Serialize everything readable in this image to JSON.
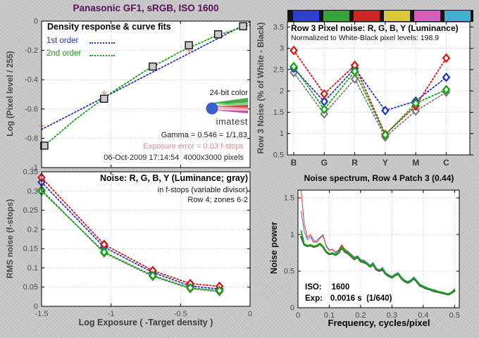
{
  "figure": {
    "title": "Panasonic GF1, sRGB, ISO 1600",
    "title_color": "#5a0d5a",
    "background_color": "#c6c6c6"
  },
  "chart_data": [
    {
      "id": "density",
      "type": "scatter",
      "title": "Density response & curve fits",
      "legend": {
        "position": "top-left",
        "entries": [
          {
            "label": "1st order",
            "color": "#2233cc"
          },
          {
            "label": "2nd order",
            "color": "#11a211"
          }
        ]
      },
      "ylabel": "Log (Pixel level / 255)",
      "xlim": [
        -1.5,
        0
      ],
      "ylim": [
        -1,
        0
      ],
      "xticks": [
        -1,
        -0.5
      ],
      "yticks": [
        0,
        -0.2,
        -0.4,
        -0.6,
        -0.8,
        -1
      ],
      "ytick_labels": [
        "0",
        "-0.2",
        "-0.4",
        "-0.6",
        "-0.8",
        "-1"
      ],
      "grid": true,
      "series": [
        {
          "name": "1st-order-fit",
          "color": "#2233cc",
          "style": "dotted",
          "x": [
            -1.5,
            0
          ],
          "y": [
            -0.74,
            -0.005
          ]
        },
        {
          "name": "2nd-order-fit",
          "color": "#11a211",
          "style": "dotted",
          "x": [
            -1.5,
            -1.25,
            -1.0,
            -0.75,
            -0.5,
            -0.25,
            0
          ],
          "y": [
            -0.866,
            -0.666,
            -0.49,
            -0.337,
            -0.208,
            -0.102,
            -0.025
          ]
        },
        {
          "name": "exposure-error-marks",
          "color": "#e09a9a",
          "marker": "plus",
          "x": [
            -1.5,
            -1.05,
            -0.44
          ],
          "y": [
            -0.715,
            -0.49,
            -0.2
          ]
        },
        {
          "name": "measured-patches",
          "color": "#111111",
          "fill": "#c9c9c9",
          "marker": "square",
          "x": [
            -1.48,
            -1.05,
            -0.7,
            -0.44,
            -0.23,
            -0.05
          ],
          "y": [
            -0.85,
            -0.53,
            -0.31,
            -0.165,
            -0.09,
            -0.035
          ]
        }
      ],
      "annotations": {
        "color_note": "24-bit color",
        "logo_text": "imatest",
        "gamma": "Gamma = 0.546 = 1/1.83",
        "exposure_error": "Exposure error = 0.03 f-stops",
        "exposure_error_color": "#e08a8a",
        "datestamp": "06-Oct-2009 17:14:54  4000x3000 pixels"
      }
    },
    {
      "id": "row3-noise",
      "type": "line",
      "title": "Row 3 Pixel noise: R, G, B, Y (Luminance)",
      "subtitle": "Normalized to White-Black pixel levels: 198.9",
      "ylabel": "Row 3 Noise (% of White - Black)",
      "categories": [
        "B",
        "G",
        "R",
        "Y",
        "M",
        "C"
      ],
      "ylim": [
        0.5,
        3.62
      ],
      "yticks": [
        0.5,
        1,
        1.5,
        2,
        2.5,
        3,
        3.5
      ],
      "ytick_labels": [
        "0.5",
        "1",
        "1.5",
        "2",
        "2.5",
        "3",
        "3.5"
      ],
      "grid": true,
      "color_strip": [
        "#2f3fd0",
        "#3aa23a",
        "#cc2525",
        "#d9ca35",
        "#da5cba",
        "#42aed0"
      ],
      "series": [
        {
          "name": "R",
          "color": "#dd1111",
          "marker": "diamond",
          "style": "dotted",
          "values": [
            2.95,
            1.93,
            2.6,
            0.98,
            1.65,
            2.77
          ]
        },
        {
          "name": "G",
          "color": "#0da80d",
          "marker": "diamond",
          "style": "dotted",
          "values": [
            2.57,
            1.57,
            2.46,
            0.97,
            1.71,
            2.03
          ]
        },
        {
          "name": "B",
          "color": "#2233cc",
          "marker": "diamond",
          "style": "dotted",
          "values": [
            2.53,
            1.75,
            2.53,
            1.54,
            1.76,
            2.32
          ]
        },
        {
          "name": "Y",
          "color": "#7d7d7d",
          "marker": "diamond",
          "style": "dotted",
          "values": [
            2.43,
            1.46,
            2.28,
            0.92,
            1.53,
            1.97
          ]
        }
      ]
    },
    {
      "id": "rms-noise",
      "type": "line",
      "title": "Noise: R, G, B, Y (Luminance; gray)",
      "subtitle": "in f-stops (variable divisor)",
      "subtitle2": "Row 4; zones 6-2",
      "ylabel": "RMS noise (f-stops)",
      "xlabel": "Log Exposure ( -Target density )",
      "xlim": [
        -1.5,
        0
      ],
      "ylim": [
        0,
        0.35
      ],
      "xticks": [
        -1.5,
        -1,
        -0.5,
        0
      ],
      "xtick_labels": [
        "-1.5",
        "-1",
        "-0.5",
        "0"
      ],
      "yticks": [
        0,
        0.05,
        0.1,
        0.15,
        0.2,
        0.25,
        0.3,
        0.35
      ],
      "ytick_labels": [
        "0",
        "0.05",
        "0.1",
        "0.15",
        "0.2",
        "0.25",
        "0.3",
        "0.35"
      ],
      "grid": true,
      "x": [
        -1.5,
        -1.05,
        -0.7,
        -0.43,
        -0.22
      ],
      "series": [
        {
          "name": "R",
          "color": "#dd1111",
          "marker": "diamond",
          "style": "dotted",
          "values": [
            0.335,
            0.161,
            0.093,
            0.059,
            0.052
          ]
        },
        {
          "name": "G",
          "color": "#0da80d",
          "marker": "diamond",
          "style": "dotted",
          "values": [
            0.3,
            0.141,
            0.08,
            0.048,
            0.041
          ]
        },
        {
          "name": "B",
          "color": "#2233cc",
          "marker": "diamond",
          "style": "dotted",
          "values": [
            0.323,
            0.154,
            0.088,
            0.053,
            0.045
          ]
        },
        {
          "name": "Y",
          "color": "#7d7d7d",
          "marker": "diamond",
          "style": "dotted",
          "values": [
            0.303,
            0.139,
            0.078,
            0.046,
            0.038
          ]
        }
      ]
    },
    {
      "id": "noise-spectrum",
      "type": "line",
      "title": "Noise spectrum, Row 4 Patch 3 (0.44)",
      "ylabel": "Noise power",
      "xlabel": "Frequency, cycles/pixel",
      "xlim": [
        0,
        0.515
      ],
      "ylim": [
        0,
        1.606
      ],
      "xticks": [
        0,
        0.1,
        0.2,
        0.3,
        0.4,
        0.5
      ],
      "xtick_labels": [
        "0",
        "0.1",
        "0.2",
        "0.3",
        "0.4",
        "0.5"
      ],
      "yticks": [
        0,
        0.5,
        1,
        1.5
      ],
      "ytick_labels": [
        "0",
        "0.5",
        "1",
        "1.5"
      ],
      "grid": true,
      "annotations": {
        "iso_label": "ISO:",
        "iso_value": "1600",
        "exp_label": "Exp:",
        "exp_value": "0.0016 s  (1/640)"
      },
      "x": [
        0.01,
        0.02,
        0.03,
        0.04,
        0.05,
        0.06,
        0.07,
        0.08,
        0.09,
        0.1,
        0.11,
        0.12,
        0.13,
        0.14,
        0.15,
        0.16,
        0.17,
        0.18,
        0.19,
        0.2,
        0.21,
        0.22,
        0.23,
        0.24,
        0.25,
        0.26,
        0.27,
        0.28,
        0.29,
        0.3,
        0.31,
        0.32,
        0.33,
        0.34,
        0.35,
        0.36,
        0.37,
        0.38,
        0.39,
        0.4,
        0.41,
        0.42,
        0.43,
        0.44,
        0.45,
        0.46,
        0.47,
        0.48,
        0.49,
        0.5
      ],
      "series": [
        {
          "name": "R",
          "color": "#e03030",
          "width": 1,
          "values": [
            1.6,
            1.14,
            0.96,
            1.0,
            0.92,
            0.89,
            0.95,
            0.98,
            0.85,
            0.79,
            0.79,
            0.76,
            0.79,
            0.86,
            0.79,
            0.76,
            0.72,
            0.68,
            0.7,
            0.65,
            0.64,
            0.61,
            0.57,
            0.61,
            0.53,
            0.51,
            0.54,
            0.47,
            0.44,
            0.42,
            0.45,
            0.47,
            0.41,
            0.37,
            0.35,
            0.37,
            0.41,
            0.36,
            0.31,
            0.29,
            0.27,
            0.26,
            0.24,
            0.23,
            0.22,
            0.21,
            0.2,
            0.19,
            0.21,
            0.26
          ]
        },
        {
          "name": "G",
          "color": "#00b400",
          "width": 1.8,
          "values": [
            1.05,
            0.87,
            0.85,
            0.86,
            0.84,
            0.85,
            0.88,
            0.84,
            0.77,
            0.74,
            0.75,
            0.73,
            0.76,
            0.83,
            0.77,
            0.75,
            0.71,
            0.67,
            0.7,
            0.64,
            0.63,
            0.61,
            0.57,
            0.6,
            0.53,
            0.51,
            0.53,
            0.47,
            0.44,
            0.42,
            0.45,
            0.47,
            0.41,
            0.37,
            0.35,
            0.37,
            0.41,
            0.36,
            0.31,
            0.29,
            0.27,
            0.26,
            0.24,
            0.23,
            0.22,
            0.21,
            0.2,
            0.19,
            0.21,
            0.24
          ]
        },
        {
          "name": "B",
          "color": "#6565d8",
          "width": 1,
          "values": [
            1.32,
            1.04,
            0.93,
            0.97,
            0.89,
            0.92,
            0.96,
            1.0,
            0.84,
            0.78,
            0.8,
            0.75,
            0.78,
            0.85,
            0.8,
            0.77,
            0.73,
            0.69,
            0.71,
            0.66,
            0.65,
            0.62,
            0.58,
            0.62,
            0.54,
            0.52,
            0.55,
            0.48,
            0.45,
            0.43,
            0.46,
            0.48,
            0.42,
            0.38,
            0.36,
            0.38,
            0.42,
            0.37,
            0.32,
            0.3,
            0.28,
            0.26,
            0.25,
            0.24,
            0.22,
            0.21,
            0.2,
            0.19,
            0.21,
            0.25
          ]
        },
        {
          "name": "Y",
          "color": "#5a5a5a",
          "width": 2.6,
          "values": [
            0.97,
            0.86,
            0.84,
            0.85,
            0.83,
            0.84,
            0.87,
            0.83,
            0.76,
            0.73,
            0.74,
            0.72,
            0.75,
            0.82,
            0.76,
            0.74,
            0.7,
            0.66,
            0.69,
            0.63,
            0.62,
            0.6,
            0.56,
            0.59,
            0.52,
            0.5,
            0.52,
            0.46,
            0.43,
            0.41,
            0.44,
            0.46,
            0.4,
            0.36,
            0.34,
            0.36,
            0.4,
            0.35,
            0.3,
            0.28,
            0.26,
            0.25,
            0.23,
            0.22,
            0.21,
            0.2,
            0.19,
            0.18,
            0.2,
            0.23
          ]
        }
      ]
    }
  ]
}
